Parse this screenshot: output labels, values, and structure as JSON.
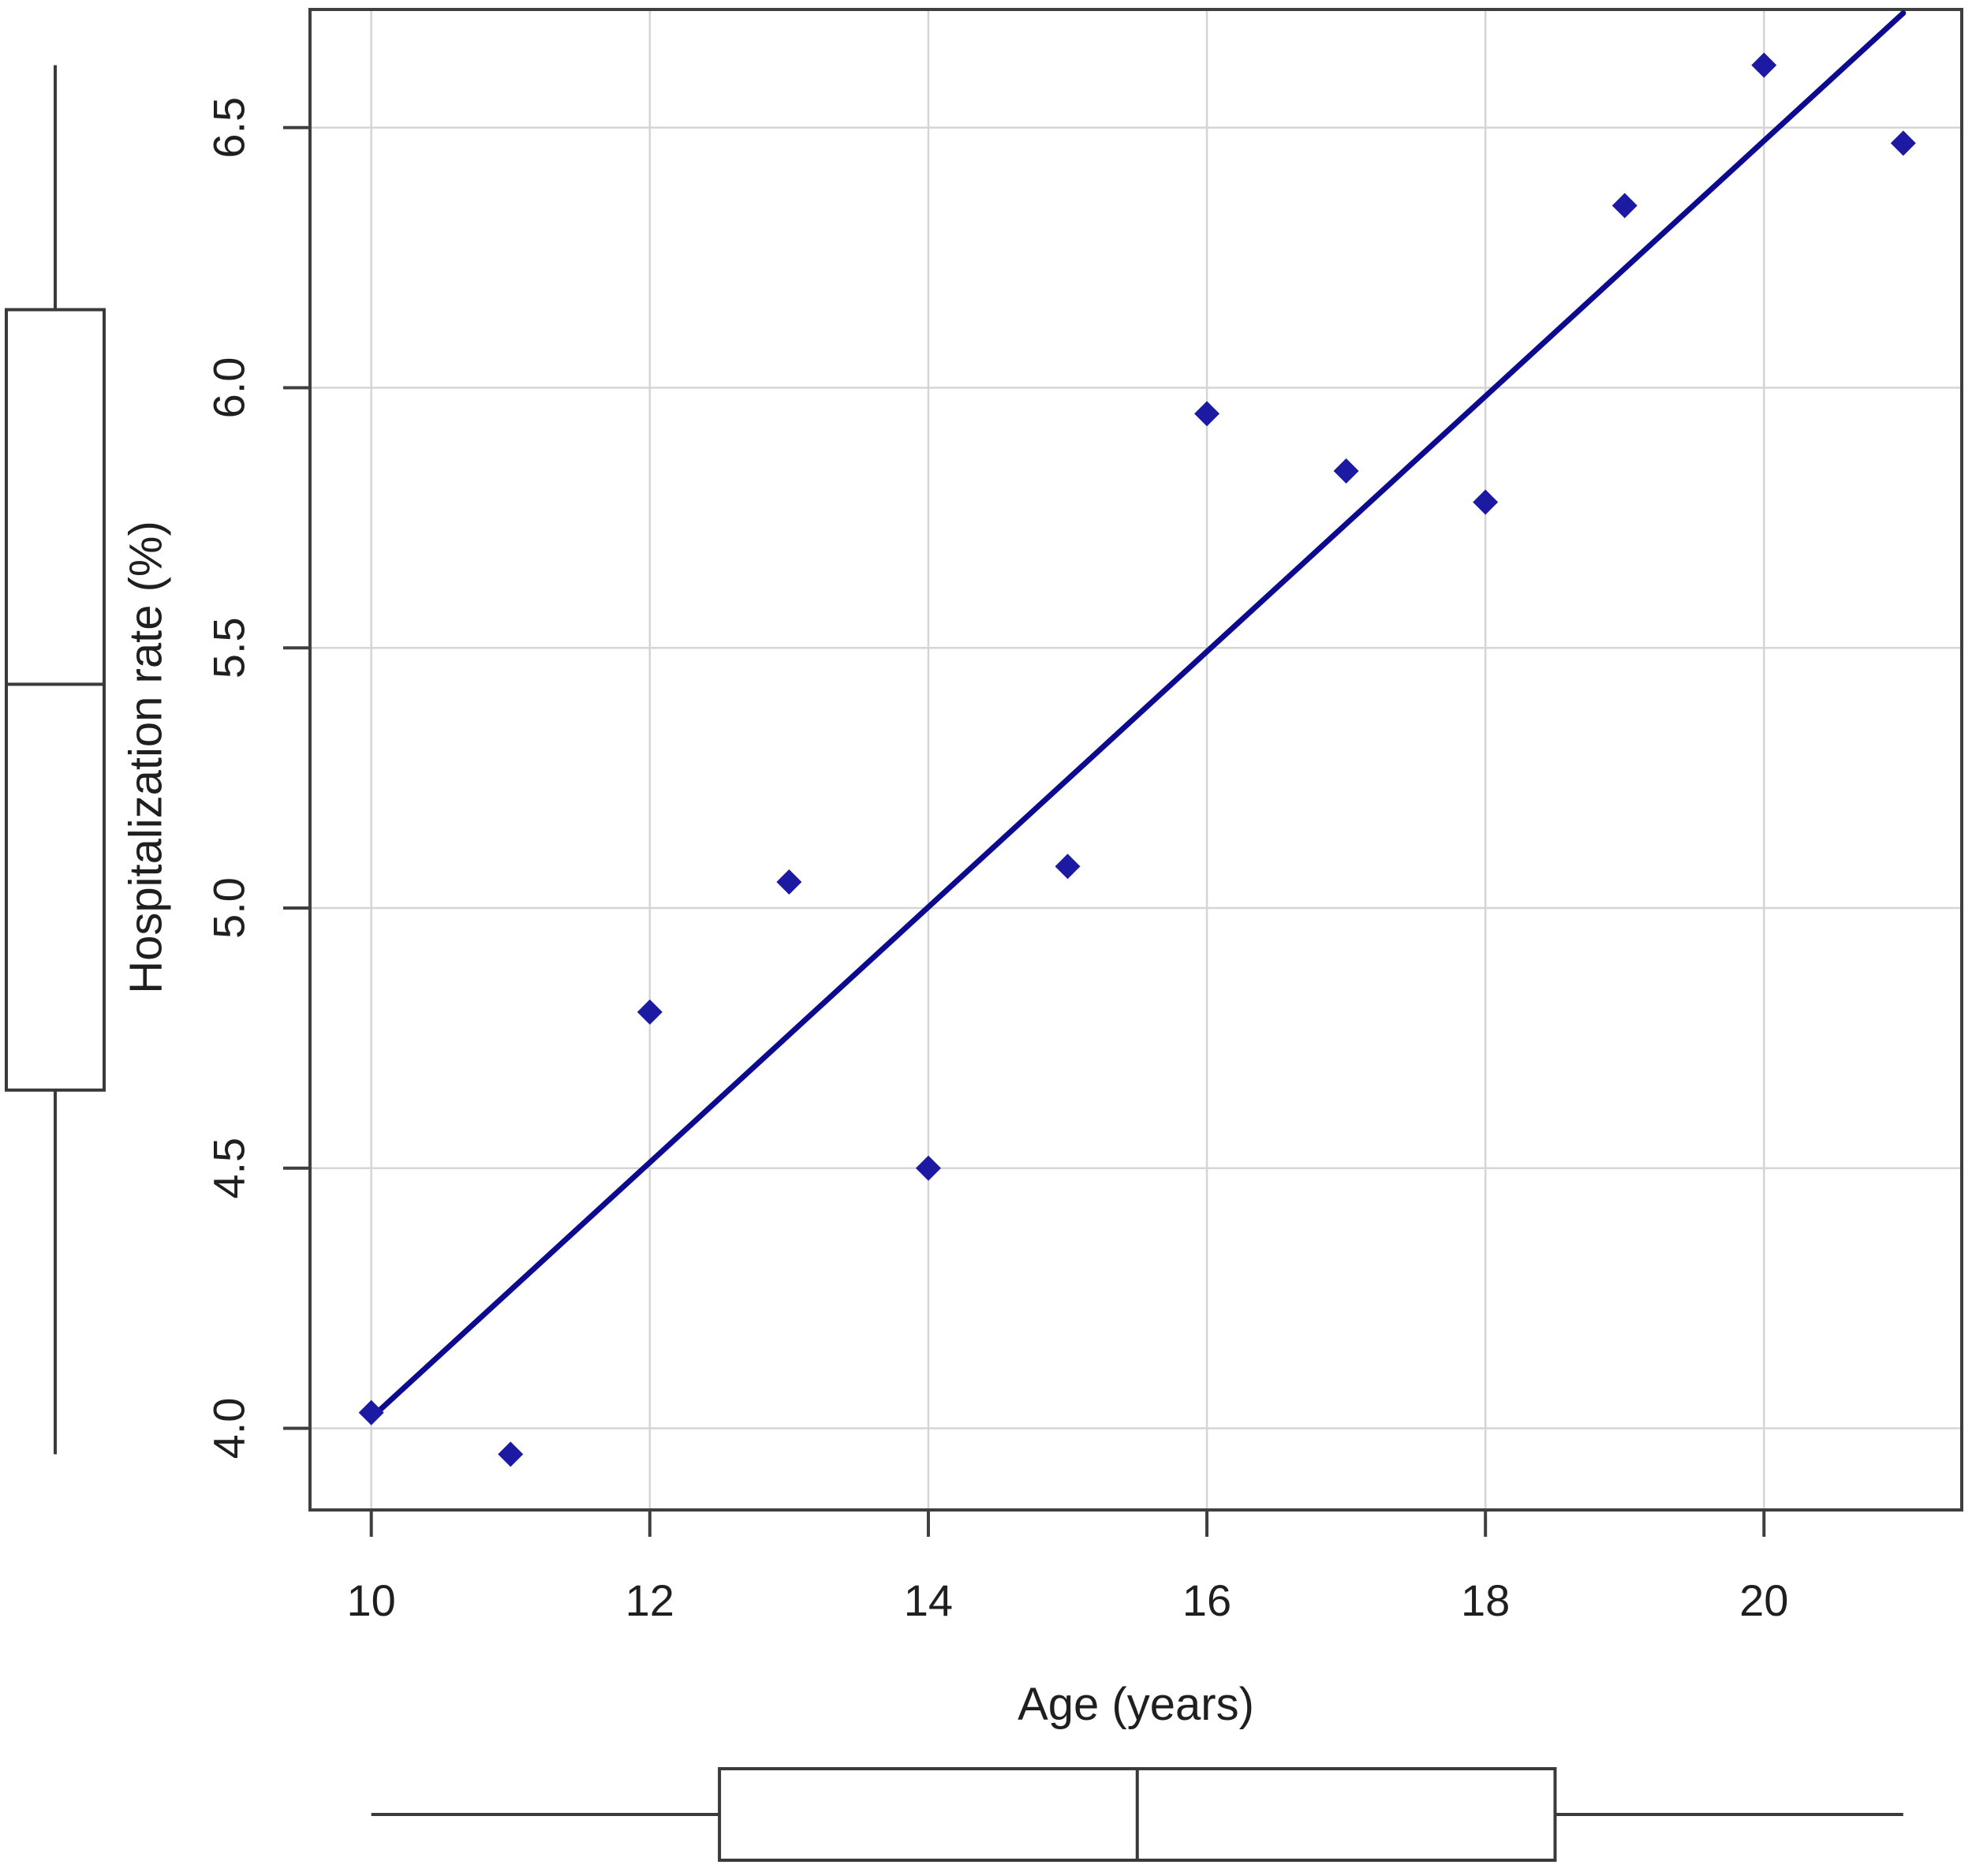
{
  "figure": {
    "description": "Scatter plot of hospitalization rate versus age with fitted regression line and marginal boxplots (vertical boxplot at left for y variable, horizontal boxplot at bottom for x variable)."
  },
  "chart_data": {
    "type": "scatter",
    "title": "",
    "xlabel": "Age (years)",
    "ylabel": "Hospitalization rate (%)",
    "x": [
      10,
      11,
      12,
      13,
      14,
      15,
      16,
      17,
      18,
      19,
      20,
      21
    ],
    "y": [
      4.03,
      3.95,
      4.8,
      5.05,
      4.5,
      5.08,
      5.95,
      5.84,
      5.78,
      6.35,
      6.62,
      6.47
    ],
    "marker": "diamond",
    "regression_line": {
      "x1": 10,
      "y1": 4.02,
      "x2": 21,
      "y2": 6.72
    },
    "x_ticks": [
      "10",
      "12",
      "14",
      "16",
      "18",
      "20"
    ],
    "x_tick_values": [
      10,
      12,
      14,
      16,
      18,
      20
    ],
    "y_ticks": [
      "4.0",
      "4.5",
      "5.0",
      "5.5",
      "6.0",
      "6.5"
    ],
    "y_tick_values": [
      4.0,
      4.5,
      5.0,
      5.5,
      6.0,
      6.5
    ],
    "xlim": [
      9.56,
      21.42
    ],
    "ylim": [
      3.843,
      6.727
    ],
    "grid": true,
    "legend": "none",
    "marginal_boxplot_x": {
      "min": 10,
      "q1": 12.5,
      "median": 15.5,
      "q3": 18.5,
      "max": 21
    },
    "marginal_boxplot_y": {
      "min": 3.95,
      "q1": 4.65,
      "median": 5.43,
      "q3": 6.15,
      "max": 6.62
    },
    "colors": {
      "point": "#1c19a3",
      "line": "#0c0a8e",
      "grid": "#d5d5d5",
      "frame": "#3f3f3f",
      "boxplot": "#3a3a3a",
      "text": "#1f1f1f",
      "background": "#ffffff"
    }
  }
}
